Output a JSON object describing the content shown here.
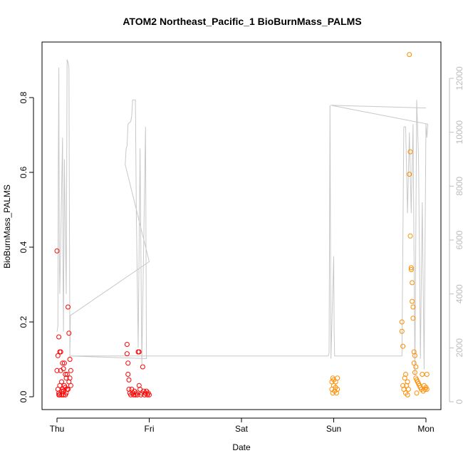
{
  "chart_data": {
    "type": "scatter",
    "title": "ATOM2 Northeast_Pacific_1 BioBurnMass_PALMS",
    "xlabel": "Date",
    "ylabel": "BioBurnMass_PALMS",
    "x_ticks": [
      "Thu",
      "Fri",
      "Sat",
      "Sun",
      "Mon"
    ],
    "ylim": [
      0,
      0.92
    ],
    "y_ticks": [
      "0.0",
      "0.2",
      "0.4",
      "0.6",
      "0.8"
    ],
    "y2lim": [
      0,
      12800
    ],
    "y2_ticks": [
      "0",
      "2000",
      "4000",
      "6000",
      "8000",
      "10000",
      "12000"
    ],
    "grid": false,
    "colors": {
      "early": "#ff0000",
      "late": "#ff8c00",
      "altitude": "#c8c8c8"
    },
    "series": [
      {
        "color": "#ff0000",
        "points": [
          [
            0.0,
            0.39
          ],
          [
            0.0,
            0.07
          ],
          [
            0.01,
            0.02
          ],
          [
            0.01,
            0.11
          ],
          [
            0.02,
            0.16
          ],
          [
            0.02,
            0.005
          ],
          [
            0.02,
            0.01
          ],
          [
            0.03,
            0.12
          ],
          [
            0.03,
            0.005
          ],
          [
            0.04,
            0.12
          ],
          [
            0.04,
            0.07
          ],
          [
            0.05,
            0.005
          ],
          [
            0.05,
            0.015
          ],
          [
            0.06,
            0.09
          ],
          [
            0.06,
            0.02
          ],
          [
            0.07,
            0.075
          ],
          [
            0.07,
            0.005
          ],
          [
            0.08,
            0.09
          ],
          [
            0.08,
            0.03
          ],
          [
            0.09,
            0.06
          ],
          [
            0.09,
            0.005
          ],
          [
            0.1,
            0.05
          ],
          [
            0.1,
            0.01
          ],
          [
            0.11,
            0.02
          ],
          [
            0.11,
            0.06
          ],
          [
            0.12,
            0.24
          ],
          [
            0.12,
            0.02
          ],
          [
            0.13,
            0.17
          ],
          [
            0.13,
            0.04
          ],
          [
            0.14,
            0.1
          ],
          [
            0.14,
            0.05
          ],
          [
            0.15,
            0.07
          ],
          [
            0.15,
            0.03
          ],
          [
            0.03,
            0.03
          ],
          [
            0.05,
            0.04
          ],
          [
            0.07,
            0.015
          ],
          [
            0.09,
            0.025
          ],
          [
            0.76,
            0.14
          ],
          [
            0.76,
            0.115
          ],
          [
            0.77,
            0.09
          ],
          [
            0.77,
            0.06
          ],
          [
            0.78,
            0.045
          ],
          [
            0.78,
            0.02
          ],
          [
            0.79,
            0.01
          ],
          [
            0.8,
            0.005
          ],
          [
            0.81,
            0.02
          ],
          [
            0.82,
            0.01
          ],
          [
            0.83,
            0.005
          ],
          [
            0.84,
            0.015
          ],
          [
            0.85,
            0.005
          ],
          [
            0.86,
            0.01
          ],
          [
            0.87,
            0.005
          ],
          [
            0.88,
            0.12
          ],
          [
            0.89,
            0.12
          ],
          [
            0.89,
            0.03
          ],
          [
            0.9,
            0.02
          ],
          [
            0.91,
            0.005
          ],
          [
            0.92,
            0.01
          ],
          [
            0.93,
            0.08
          ],
          [
            0.94,
            0.015
          ],
          [
            0.95,
            0.005
          ],
          [
            0.96,
            0.01
          ],
          [
            0.97,
            0.015
          ],
          [
            0.98,
            0.005
          ],
          [
            0.99,
            0.01
          ],
          [
            1.0,
            0.005
          ]
        ]
      },
      {
        "color": "#ff8c00",
        "points": [
          [
            2.98,
            0.04
          ],
          [
            2.98,
            0.02
          ],
          [
            2.99,
            0.05
          ],
          [
            2.99,
            0.01
          ],
          [
            3.0,
            0.045
          ],
          [
            3.0,
            0.03
          ],
          [
            3.01,
            0.015
          ],
          [
            3.02,
            0.04
          ],
          [
            3.02,
            0.025
          ],
          [
            3.03,
            0.01
          ],
          [
            3.04,
            0.05
          ],
          [
            3.04,
            0.02
          ],
          [
            3.74,
            0.2
          ],
          [
            3.74,
            0.175
          ],
          [
            3.75,
            0.135
          ],
          [
            3.75,
            0.03
          ],
          [
            3.76,
            0.02
          ],
          [
            3.77,
            0.05
          ],
          [
            3.78,
            0.01
          ],
          [
            3.79,
            0.03
          ],
          [
            3.8,
            0.005
          ],
          [
            3.81,
            0.02
          ],
          [
            3.82,
            0.915
          ],
          [
            3.82,
            0.595
          ],
          [
            3.83,
            0.655
          ],
          [
            3.83,
            0.43
          ],
          [
            3.84,
            0.345
          ],
          [
            3.84,
            0.34
          ],
          [
            3.85,
            0.305
          ],
          [
            3.85,
            0.255
          ],
          [
            3.86,
            0.24
          ],
          [
            3.86,
            0.21
          ],
          [
            3.87,
            0.12
          ],
          [
            3.87,
            0.09
          ],
          [
            3.88,
            0.11
          ],
          [
            3.88,
            0.065
          ],
          [
            3.89,
            0.08
          ],
          [
            3.89,
            0.05
          ],
          [
            3.9,
            0.045
          ],
          [
            3.91,
            0.04
          ],
          [
            3.92,
            0.035
          ],
          [
            3.93,
            0.03
          ],
          [
            3.94,
            0.025
          ],
          [
            3.95,
            0.02
          ],
          [
            3.96,
            0.06
          ],
          [
            3.97,
            0.015
          ],
          [
            3.98,
            0.03
          ],
          [
            3.99,
            0.02
          ],
          [
            4.0,
            0.025
          ],
          [
            4.01,
            0.06
          ],
          [
            4.01,
            0.02
          ],
          [
            3.78,
            0.06
          ],
          [
            3.8,
            0.04
          ],
          [
            3.9,
            0.01
          ]
        ]
      }
    ],
    "altitude_line": [
      [
        0.0,
        2600
      ],
      [
        0.01,
        2800
      ],
      [
        0.015,
        9000
      ],
      [
        0.02,
        12400
      ],
      [
        0.025,
        6000
      ],
      [
        0.03,
        4000
      ],
      [
        0.06,
        9800
      ],
      [
        0.065,
        5000
      ],
      [
        0.07,
        2600
      ],
      [
        0.08,
        9000
      ],
      [
        0.1,
        4000
      ],
      [
        0.11,
        12700
      ],
      [
        0.12,
        12600
      ],
      [
        0.13,
        12400
      ],
      [
        0.14,
        1600
      ],
      [
        0.145,
        3200
      ],
      [
        1.0,
        5200
      ],
      [
        0.74,
        8800
      ],
      [
        0.75,
        9400
      ],
      [
        0.76,
        9500
      ],
      [
        0.77,
        10300
      ],
      [
        0.8,
        10400
      ],
      [
        0.81,
        10600
      ],
      [
        0.82,
        11200
      ],
      [
        0.85,
        11200
      ],
      [
        0.86,
        7000
      ],
      [
        0.88,
        2000
      ],
      [
        0.9,
        9400
      ],
      [
        0.92,
        1400
      ],
      [
        0.96,
        10200
      ],
      [
        0.97,
        1600
      ],
      [
        0.14,
        1700
      ],
      [
        2.94,
        1700
      ],
      [
        2.95,
        1800
      ],
      [
        2.96,
        11000
      ],
      [
        2.97,
        1600
      ],
      [
        3.0,
        5400
      ],
      [
        3.005,
        2600
      ],
      [
        3.01,
        1700
      ],
      [
        3.74,
        1700
      ],
      [
        3.76,
        10200
      ],
      [
        3.78,
        10200
      ],
      [
        3.8,
        7000
      ],
      [
        3.82,
        10000
      ],
      [
        3.84,
        7000
      ],
      [
        3.86,
        10300
      ],
      [
        3.88,
        1000
      ],
      [
        3.9,
        11200
      ],
      [
        3.92,
        9000
      ],
      [
        3.94,
        1600
      ],
      [
        3.96,
        7400
      ],
      [
        3.98,
        1200
      ],
      [
        4.0,
        10300
      ],
      [
        4.01,
        9800
      ],
      [
        4.02,
        10300
      ],
      [
        2.97,
        11000
      ],
      [
        4.0,
        10900
      ]
    ]
  }
}
